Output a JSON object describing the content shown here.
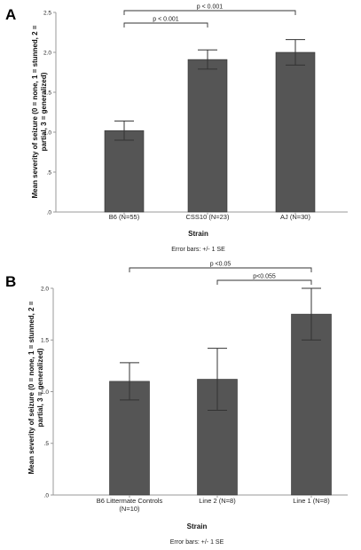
{
  "chart_data": [
    {
      "panel": "A",
      "type": "bar",
      "categories": [
        "B6 (N=55)",
        "CSS10 (N=23)",
        "AJ (N=30)"
      ],
      "values": [
        1.02,
        1.91,
        2.0
      ],
      "errors": [
        0.12,
        0.12,
        0.16
      ],
      "ylim": [
        0,
        2.5
      ],
      "yticks": [
        ".0",
        ".5",
        "1.0",
        "1.5",
        "2.0",
        "2.5"
      ],
      "xlabel": "Strain",
      "ylabel_lines": [
        "Mean severity of seizure (0 = none, 1 = stunned, 2 =",
        "partial, 3 = generalized)"
      ],
      "note": "Error bars: +/- 1 SE",
      "bar_color": "#555555",
      "significance": [
        {
          "from": 0,
          "to": 1,
          "label": "p < 0.001"
        },
        {
          "from": 0,
          "to": 2,
          "label": "p < 0.001"
        }
      ]
    },
    {
      "panel": "B",
      "type": "bar",
      "categories": [
        [
          "B6 Littermate Controls",
          "(N=10)"
        ],
        [
          "Line 2 (N=8)"
        ],
        [
          "Line 1 (N=8)"
        ]
      ],
      "values": [
        1.1,
        1.12,
        1.75
      ],
      "errors": [
        0.18,
        0.3,
        0.25
      ],
      "ylim": [
        0,
        2.0
      ],
      "yticks": [
        ".0",
        ".5",
        "1.0",
        "1.5",
        "2.0"
      ],
      "xlabel": "Strain",
      "ylabel_lines": [
        "Mean severity of seizure (0 = none, 1 = stunned, 2 =",
        "partial, 3 = generalized)"
      ],
      "note": "Error bars: +/- 1 SE",
      "bar_color": "#555555",
      "significance": [
        {
          "from": 1,
          "to": 2,
          "label": "p<0.055"
        },
        {
          "from": 0,
          "to": 2,
          "label": "p <0.05"
        }
      ]
    }
  ]
}
